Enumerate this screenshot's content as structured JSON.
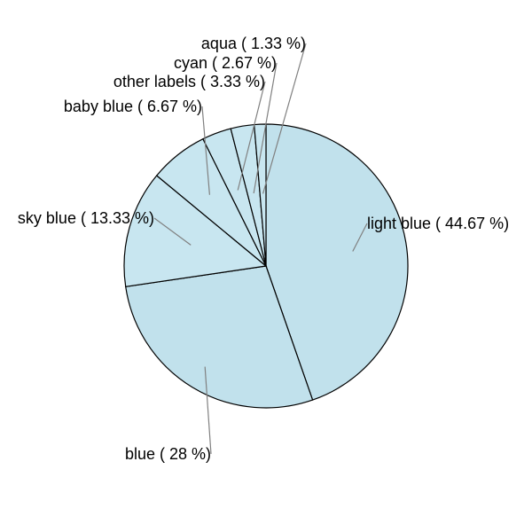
{
  "chart_data": {
    "type": "pie",
    "title": "",
    "slices": [
      {
        "label": "light blue",
        "value": 44.67,
        "display": "light blue ( 44.67 %)",
        "color": "#c1e1ec"
      },
      {
        "label": "blue",
        "value": 28.0,
        "display": "blue ( 28 %)",
        "color": "#c1e1ec"
      },
      {
        "label": "sky blue",
        "value": 13.33,
        "display": "sky blue ( 13.33 %)",
        "color": "#c8e6f0"
      },
      {
        "label": "baby blue",
        "value": 6.67,
        "display": "baby blue ( 6.67 %)",
        "color": "#c8e6f0"
      },
      {
        "label": "other labels",
        "value": 3.33,
        "display": "other labels ( 3.33 %)",
        "color": "#c8e6f0"
      },
      {
        "label": "cyan",
        "value": 2.67,
        "display": "cyan ( 2.67 %)",
        "color": "#c8e6f0"
      },
      {
        "label": "aqua",
        "value": 1.33,
        "display": "aqua ( 1.33 %)",
        "color": "#c8e6f0"
      }
    ],
    "direction": "clockwise",
    "start_angle": "12 o'clock"
  },
  "colors": {
    "outline": "#000000",
    "leader": "#808080"
  }
}
